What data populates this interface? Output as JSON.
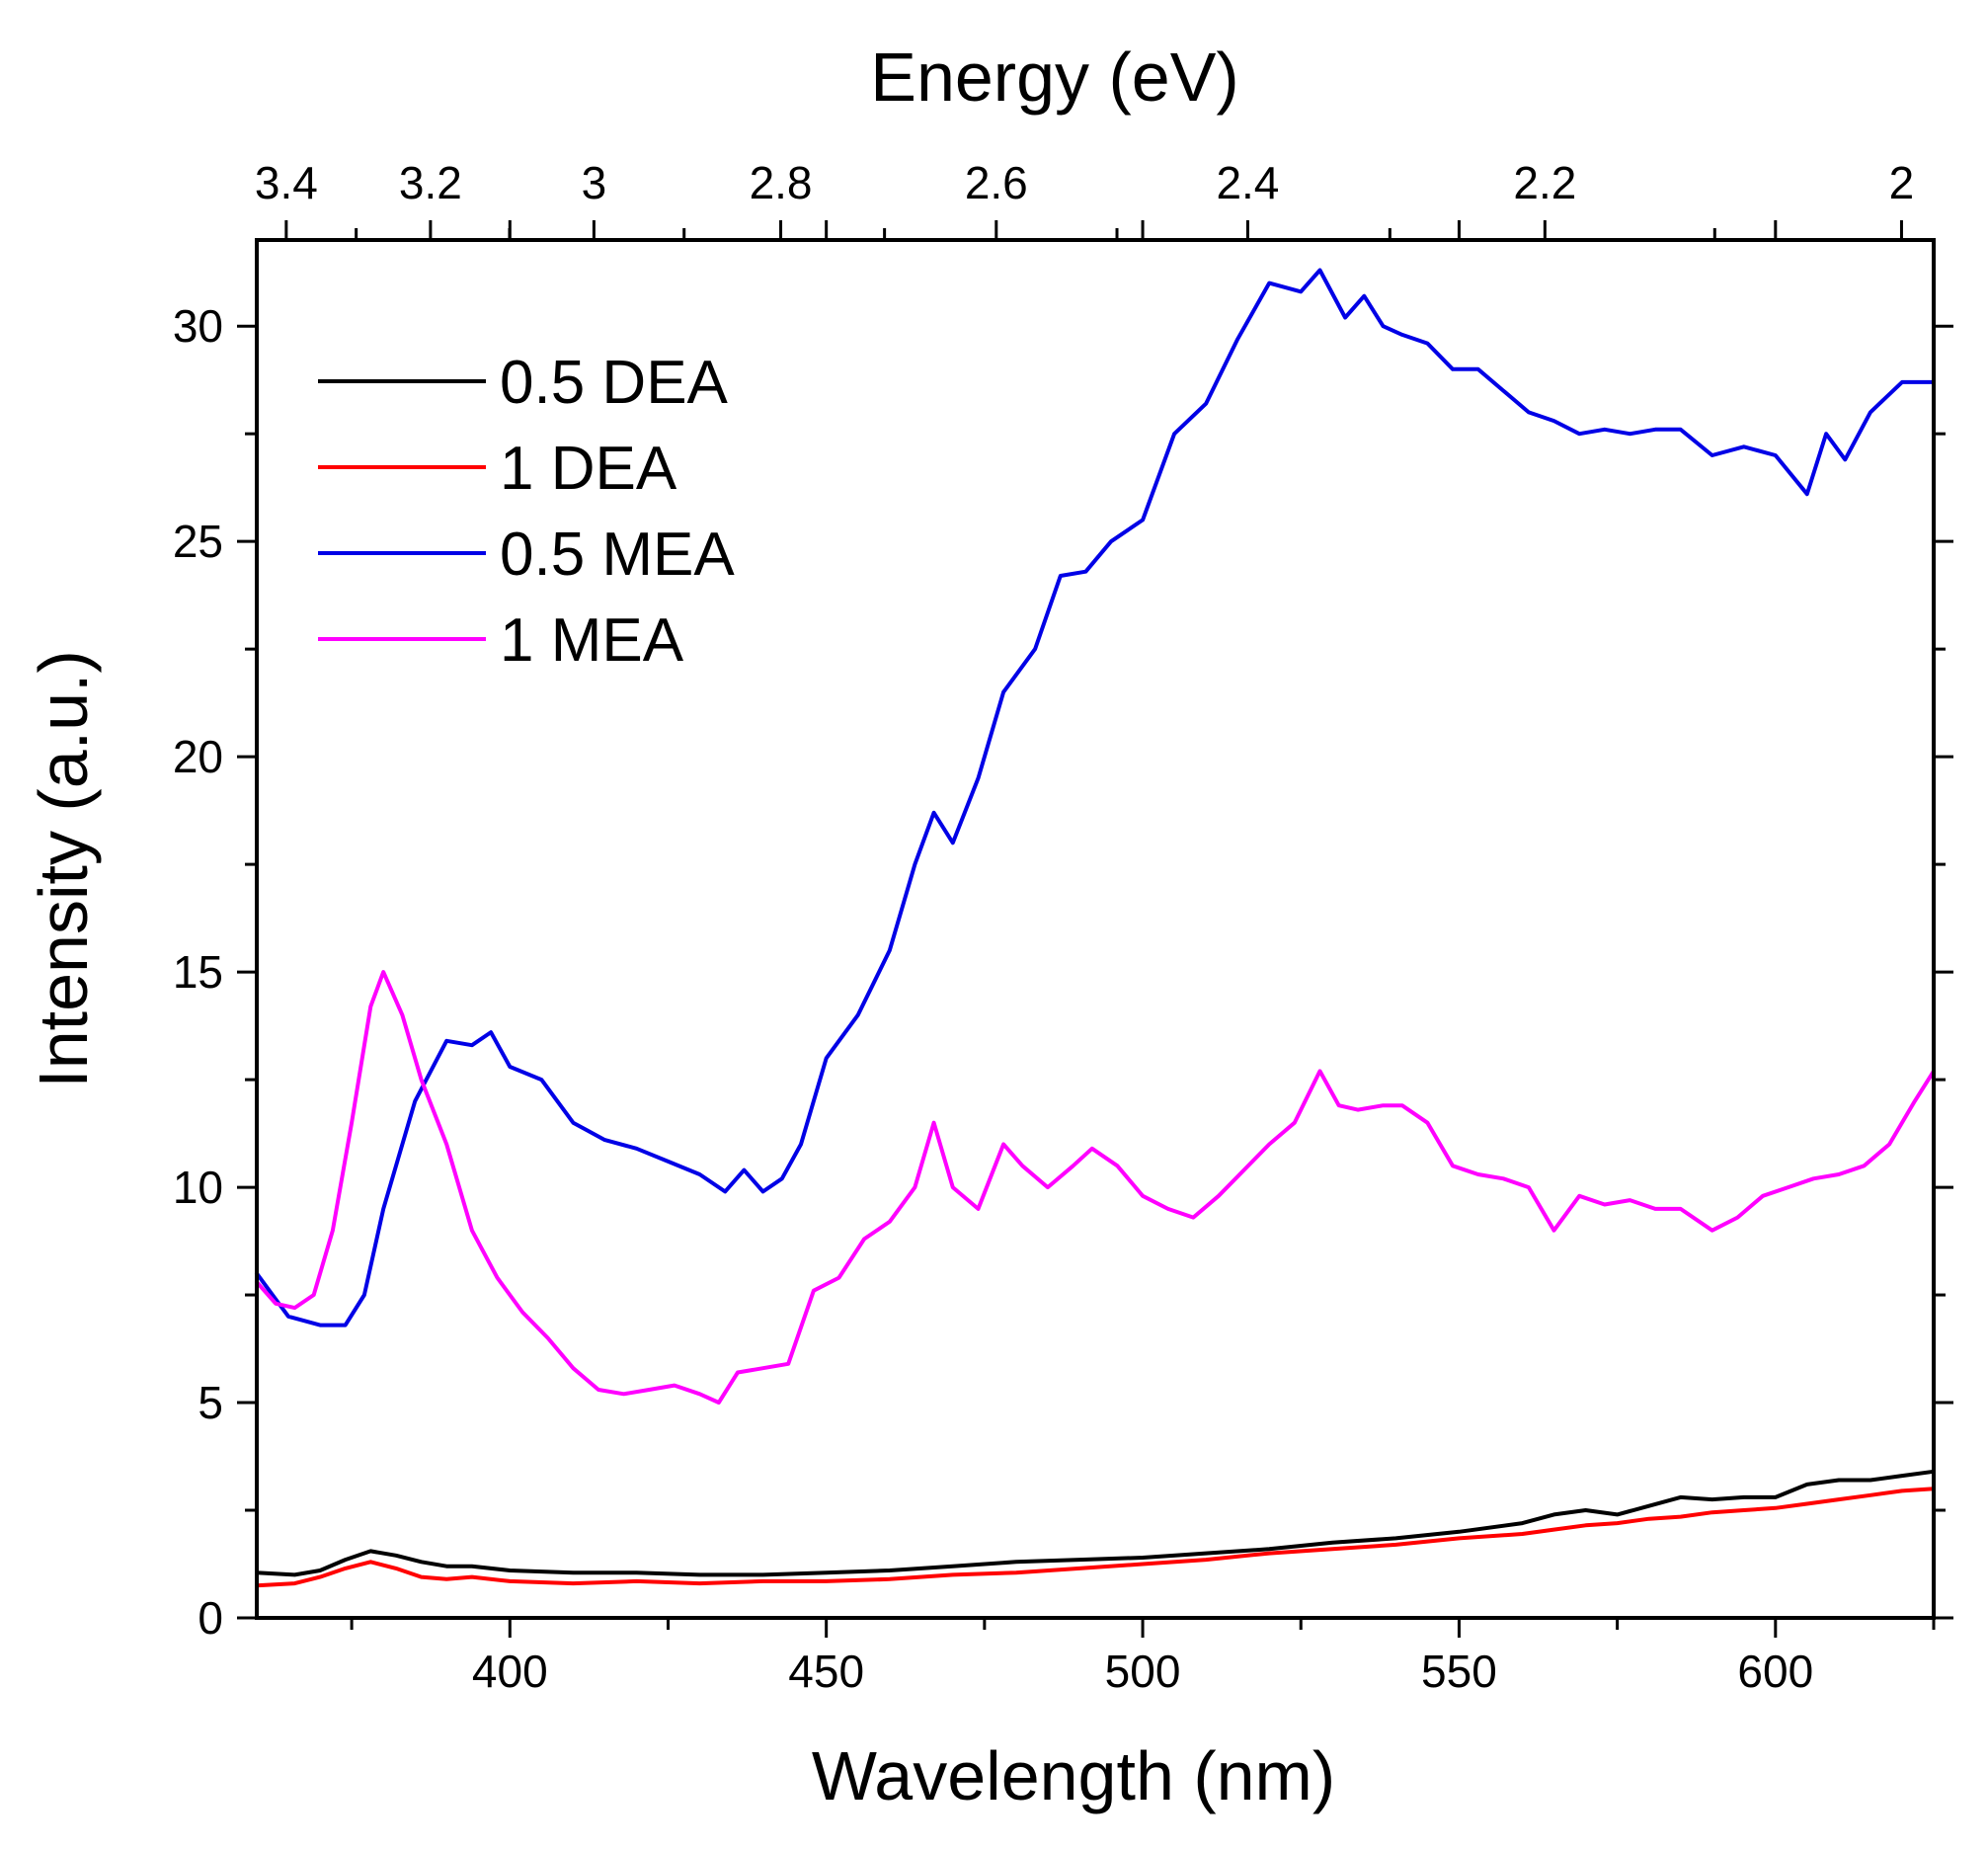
{
  "chart_data": {
    "type": "line",
    "xlabel": "Wavelength (nm)",
    "x2label": "Energy (eV)",
    "ylabel": "Intensity (a.u.)",
    "xlim": [
      360,
      625
    ],
    "ylim": [
      0,
      32
    ],
    "x_ticks": [
      "400",
      "450",
      "500",
      "550",
      "600"
    ],
    "y_ticks": [
      "0",
      "5",
      "10",
      "15",
      "20",
      "25",
      "30"
    ],
    "x2_ticks": [
      "3.4",
      "3.2",
      "3",
      "2.8",
      "2.6",
      "2.4",
      "2.2",
      "2"
    ],
    "legend_position": "top-left",
    "grid": false,
    "series": [
      {
        "name": "0.5 DEA",
        "color": "#000000",
        "x": [
          360,
          366,
          370,
          374,
          378,
          382,
          386,
          390,
          394,
          400,
          410,
          420,
          430,
          440,
          450,
          460,
          470,
          480,
          490,
          500,
          510,
          520,
          530,
          540,
          550,
          560,
          565,
          570,
          575,
          580,
          585,
          590,
          595,
          600,
          605,
          610,
          615,
          620,
          625
        ],
        "y": [
          1.05,
          1.0,
          1.1,
          1.35,
          1.55,
          1.45,
          1.3,
          1.2,
          1.2,
          1.1,
          1.05,
          1.05,
          1.0,
          1.0,
          1.05,
          1.1,
          1.2,
          1.3,
          1.35,
          1.4,
          1.5,
          1.6,
          1.75,
          1.85,
          2.0,
          2.2,
          2.4,
          2.5,
          2.4,
          2.6,
          2.8,
          2.75,
          2.8,
          2.8,
          3.1,
          3.2,
          3.2,
          3.3,
          3.4
        ]
      },
      {
        "name": "1 DEA",
        "color": "#ff0000",
        "x": [
          360,
          366,
          370,
          374,
          378,
          382,
          386,
          390,
          394,
          400,
          410,
          420,
          430,
          440,
          450,
          460,
          470,
          480,
          490,
          500,
          510,
          520,
          530,
          540,
          550,
          560,
          565,
          570,
          575,
          580,
          585,
          590,
          595,
          600,
          605,
          610,
          615,
          620,
          625
        ],
        "y": [
          0.75,
          0.8,
          0.95,
          1.15,
          1.3,
          1.15,
          0.95,
          0.9,
          0.95,
          0.85,
          0.8,
          0.85,
          0.8,
          0.85,
          0.85,
          0.9,
          1.0,
          1.05,
          1.15,
          1.25,
          1.35,
          1.5,
          1.6,
          1.7,
          1.85,
          1.95,
          2.05,
          2.15,
          2.2,
          2.3,
          2.35,
          2.45,
          2.5,
          2.55,
          2.65,
          2.75,
          2.85,
          2.95,
          3.0
        ]
      },
      {
        "name": "0.5 MEA",
        "color": "#0000e6",
        "x": [
          360,
          365,
          370,
          374,
          377,
          380,
          385,
          390,
          394,
          397,
          400,
          405,
          410,
          415,
          420,
          425,
          430,
          434,
          437,
          440,
          443,
          446,
          450,
          455,
          460,
          464,
          467,
          470,
          474,
          478,
          483,
          487,
          491,
          495,
          500,
          505,
          510,
          515,
          520,
          525,
          528,
          532,
          535,
          538,
          541,
          545,
          549,
          553,
          557,
          561,
          565,
          569,
          573,
          577,
          581,
          585,
          590,
          595,
          600,
          605,
          608,
          611,
          615,
          620,
          625
        ],
        "y": [
          8.0,
          7.0,
          6.8,
          6.8,
          7.5,
          9.5,
          12.0,
          13.4,
          13.3,
          13.6,
          12.8,
          12.5,
          11.5,
          11.1,
          10.9,
          10.6,
          10.3,
          9.9,
          10.4,
          9.9,
          10.2,
          11.0,
          13.0,
          14.0,
          15.5,
          17.5,
          18.7,
          18.0,
          19.5,
          21.5,
          22.5,
          24.2,
          24.3,
          25.0,
          25.5,
          27.5,
          28.2,
          29.7,
          31.0,
          30.8,
          31.3,
          30.2,
          30.7,
          30.0,
          29.8,
          29.6,
          29.0,
          29.0,
          28.5,
          28.0,
          27.8,
          27.5,
          27.6,
          27.5,
          27.6,
          27.6,
          27.0,
          27.2,
          27.0,
          26.1,
          27.5,
          26.9,
          28.0,
          28.7,
          28.7
        ]
      },
      {
        "name": "1 MEA",
        "color": "#ff00ff",
        "x": [
          360,
          363,
          366,
          369,
          372,
          375,
          378,
          380,
          383,
          386,
          390,
          394,
          398,
          402,
          406,
          410,
          414,
          418,
          422,
          426,
          430,
          433,
          436,
          440,
          444,
          448,
          452,
          456,
          460,
          464,
          467,
          470,
          474,
          478,
          481,
          485,
          489,
          492,
          496,
          500,
          504,
          508,
          512,
          516,
          520,
          524,
          528,
          531,
          534,
          538,
          541,
          545,
          549,
          553,
          557,
          561,
          565,
          569,
          573,
          577,
          581,
          585,
          590,
          594,
          598,
          602,
          606,
          610,
          614,
          618,
          622,
          625
        ],
        "y": [
          7.8,
          7.3,
          7.2,
          7.5,
          9.0,
          11.5,
          14.2,
          15.0,
          14.0,
          12.5,
          11.0,
          9.0,
          7.9,
          7.1,
          6.5,
          5.8,
          5.3,
          5.2,
          5.3,
          5.4,
          5.2,
          5.0,
          5.7,
          5.8,
          5.9,
          7.6,
          7.9,
          8.8,
          9.2,
          10.0,
          11.5,
          10.0,
          9.5,
          11.0,
          10.5,
          10.0,
          10.5,
          10.9,
          10.5,
          9.8,
          9.5,
          9.3,
          9.8,
          10.4,
          11.0,
          11.5,
          12.7,
          11.9,
          11.8,
          11.9,
          11.9,
          11.5,
          10.5,
          10.3,
          10.2,
          10.0,
          9.0,
          9.8,
          9.6,
          9.7,
          9.5,
          9.5,
          9.0,
          9.3,
          9.8,
          10.0,
          10.2,
          10.3,
          10.5,
          11.0,
          12.0,
          12.7
        ]
      }
    ]
  }
}
